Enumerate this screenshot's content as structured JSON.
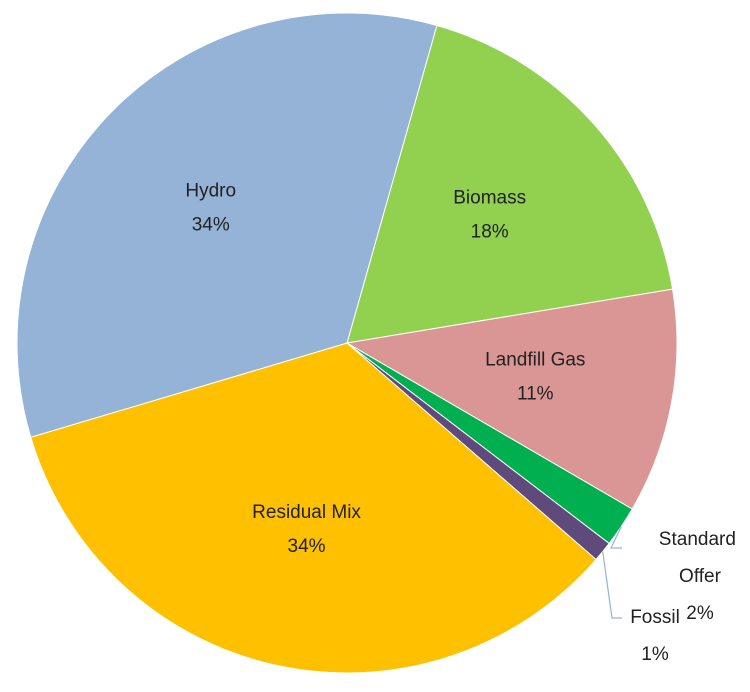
{
  "chart_data": {
    "type": "pie",
    "categories": [
      "Biomass",
      "Landfill Gas",
      "Standard Offer",
      "Fossil",
      "Residual Mix",
      "Hydro"
    ],
    "values": [
      18,
      11,
      2,
      1,
      34,
      34
    ],
    "value_labels": [
      "18%",
      "11%",
      "2%",
      "1%",
      "34%",
      "34%"
    ],
    "colors": [
      "#92d050",
      "#d99694",
      "#00b050",
      "#604a7b",
      "#ffc000",
      "#95b3d7"
    ]
  }
}
